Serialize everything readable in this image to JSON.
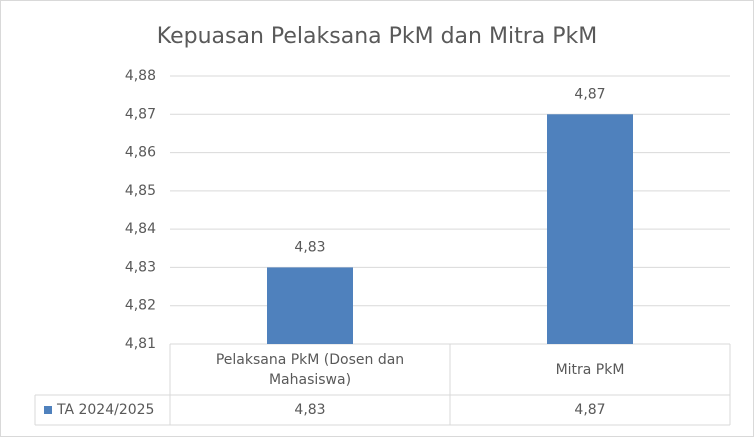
{
  "chart_data": {
    "type": "bar",
    "title": "Kepuasan Pelaksana PkM dan Mitra PkM",
    "categories": [
      "Pelaksana PkM (Dosen dan Mahasiswa)",
      "Mitra PkM"
    ],
    "series": [
      {
        "name": "TA 2024/2025",
        "color": "#4f81bd",
        "values": [
          4.83,
          4.87
        ],
        "value_labels": [
          "4,83",
          "4,87"
        ]
      }
    ],
    "ylim": [
      4.81,
      4.88
    ],
    "yticks": [
      {
        "value": 4.81,
        "label": "4,81"
      },
      {
        "value": 4.82,
        "label": "4,82"
      },
      {
        "value": 4.83,
        "label": "4,83"
      },
      {
        "value": 4.84,
        "label": "4,84"
      },
      {
        "value": 4.85,
        "label": "4,85"
      },
      {
        "value": 4.86,
        "label": "4,86"
      },
      {
        "value": 4.87,
        "label": "4,87"
      },
      {
        "value": 4.88,
        "label": "4,88"
      }
    ],
    "grid": true
  }
}
